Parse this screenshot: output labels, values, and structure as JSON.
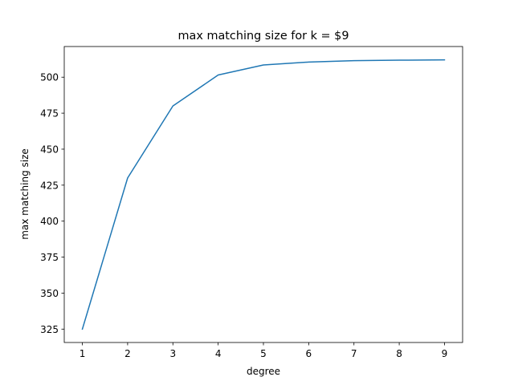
{
  "chart_data": {
    "type": "line",
    "title": "max matching size for k = $9",
    "xlabel": "degree",
    "ylabel": "max matching size",
    "xlim": [
      0.6,
      9.4
    ],
    "ylim": [
      315.7,
      521.3
    ],
    "grid": false,
    "xticks": [
      1,
      2,
      3,
      4,
      5,
      6,
      7,
      8,
      9
    ],
    "yticks": [
      325,
      350,
      375,
      400,
      425,
      450,
      475,
      500
    ],
    "series": [
      {
        "color": "#1f77b4",
        "x": [
          1,
          2,
          3,
          4,
          5,
          6,
          7,
          8,
          9
        ],
        "y": [
          325,
          430,
          480,
          501.5,
          508.5,
          510.5,
          511.5,
          511.8,
          512
        ]
      }
    ]
  }
}
